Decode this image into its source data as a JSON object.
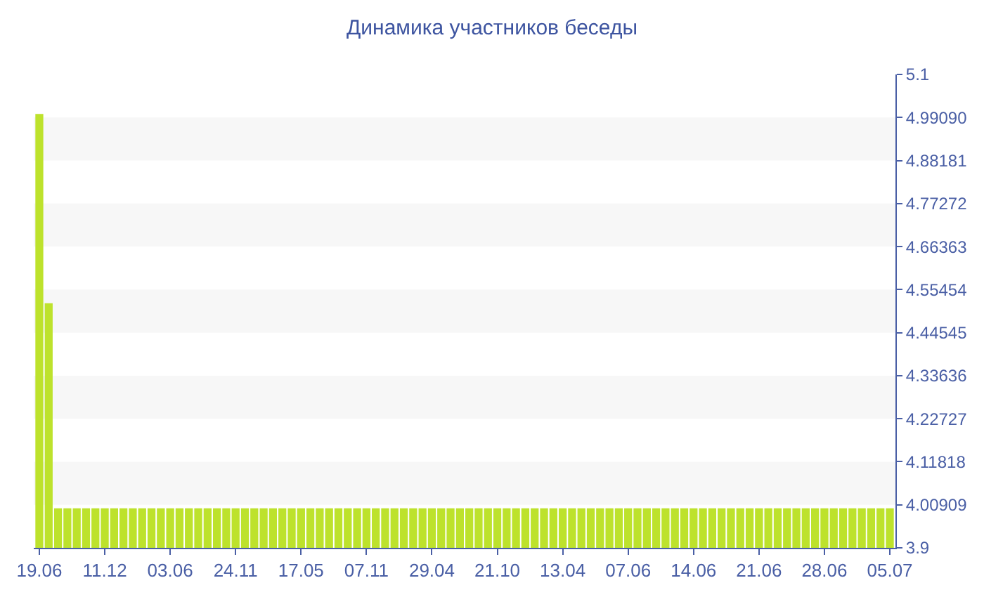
{
  "chart_data": {
    "type": "bar",
    "title": "Динамика участников беседы",
    "categories": [
      "19.06",
      null,
      null,
      null,
      null,
      null,
      null,
      "11.12",
      null,
      null,
      null,
      null,
      null,
      null,
      "03.06",
      null,
      null,
      null,
      null,
      null,
      null,
      "24.11",
      null,
      null,
      null,
      null,
      null,
      null,
      "17.05",
      null,
      null,
      null,
      null,
      null,
      null,
      "07.11",
      null,
      null,
      null,
      null,
      null,
      null,
      "29.04",
      null,
      null,
      null,
      null,
      null,
      null,
      "21.10",
      null,
      null,
      null,
      null,
      null,
      null,
      "13.04",
      null,
      null,
      null,
      null,
      null,
      null,
      "07.06",
      null,
      null,
      null,
      null,
      null,
      null,
      "14.06",
      null,
      null,
      null,
      null,
      null,
      null,
      "21.06",
      null,
      null,
      null,
      null,
      null,
      null,
      "28.06",
      null,
      null,
      null,
      null,
      null,
      null,
      "05.07"
    ],
    "values": [
      5,
      4.52,
      4,
      4,
      4,
      4,
      4,
      4,
      4,
      4,
      4,
      4,
      4,
      4,
      4,
      4,
      4,
      4,
      4,
      4,
      4,
      4,
      4,
      4,
      4,
      4,
      4,
      4,
      4,
      4,
      4,
      4,
      4,
      4,
      4,
      4,
      4,
      4,
      4,
      4,
      4,
      4,
      4,
      4,
      4,
      4,
      4,
      4,
      4,
      4,
      4,
      4,
      4,
      4,
      4,
      4,
      4,
      4,
      4,
      4,
      4,
      4,
      4,
      4,
      4,
      4,
      4,
      4,
      4,
      4,
      4,
      4,
      4,
      4,
      4,
      4,
      4,
      4,
      4,
      4,
      4,
      4,
      4,
      4,
      4,
      4,
      4,
      4,
      4,
      4,
      4,
      4
    ],
    "color": "#bde22c",
    "ylim": [
      3.9,
      5.1
    ],
    "yticks": [
      3.9,
      {
        "value": 4.00909,
        "label": "4.00909"
      },
      {
        "value": 4.11818,
        "label": "4.11818"
      },
      {
        "value": 4.22727,
        "label": "4.22727"
      },
      {
        "value": 4.33636,
        "label": "4.33636"
      },
      {
        "value": 4.44545,
        "label": "4.44545"
      },
      {
        "value": 4.55454,
        "label": "4.55454"
      },
      {
        "value": 4.66363,
        "label": "4.66363"
      },
      {
        "value": 4.77272,
        "label": "4.77272"
      },
      {
        "value": 4.88181,
        "label": "4.88181"
      },
      {
        "value": 4.9909,
        "label": "4.99090"
      },
      5.1
    ],
    "bands": [
      {
        "axis": "y",
        "from": 4.00909,
        "to": 4.11818,
        "color": "#f7f7f7"
      },
      {
        "axis": "y",
        "from": 4.22727,
        "to": 4.33636,
        "color": "#f7f7f7"
      },
      {
        "axis": "y",
        "from": 4.44545,
        "to": 4.55454,
        "color": "#f7f7f7"
      },
      {
        "axis": "y",
        "from": 4.66363,
        "to": 4.77272,
        "color": "#f7f7f7"
      },
      {
        "axis": "y",
        "from": 4.88181,
        "to": 4.9909,
        "color": "#f7f7f7"
      }
    ],
    "grid": false,
    "legend": false
  }
}
